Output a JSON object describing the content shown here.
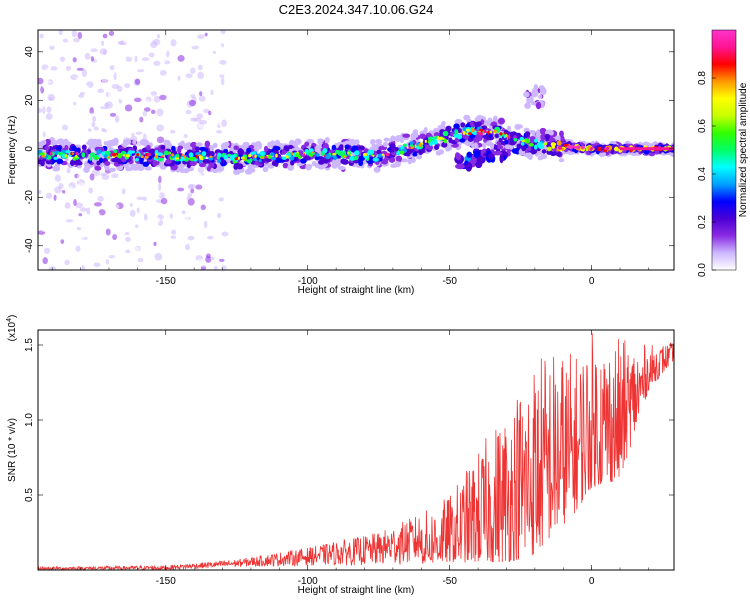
{
  "title": "C2E3.2024.347.10.06.G24",
  "chart_data": [
    {
      "type": "heatmap",
      "title": "C2E3.2024.347.10.06.G24",
      "xlabel": "Height of straight line (km)",
      "ylabel": "Frequency (Hz)",
      "xlim": [
        -195,
        29
      ],
      "ylim": [
        -50,
        49
      ],
      "x_ticks": [
        -150,
        -100,
        -50,
        0
      ],
      "y_ticks": [
        -40,
        -20,
        0,
        20,
        40
      ],
      "x_tick_labels": [
        "-150",
        "-100",
        "-50",
        "0"
      ],
      "y_tick_labels": [
        "-40",
        "-20",
        "0",
        "20",
        "40"
      ],
      "ridge": [
        {
          "x": -195,
          "y": -2.5
        },
        {
          "x": -150,
          "y": -3
        },
        {
          "x": -125,
          "y": -4
        },
        {
          "x": -100,
          "y": -2
        },
        {
          "x": -75,
          "y": -3
        },
        {
          "x": -60,
          "y": 2
        },
        {
          "x": -45,
          "y": 7
        },
        {
          "x": -35,
          "y": 7
        },
        {
          "x": -28,
          "y": 5
        },
        {
          "x": -20,
          "y": 2
        },
        {
          "x": -10,
          "y": 1
        },
        {
          "x": 0,
          "y": 0
        },
        {
          "x": 10,
          "y": 0
        },
        {
          "x": 29,
          "y": 0
        }
      ],
      "noise_x_range": [
        -195,
        -129
      ],
      "colorbar": {
        "label": "Normalized spectral amplitude",
        "range": [
          0,
          1
        ],
        "ticks": [
          0.0,
          0.2,
          0.4,
          0.6,
          0.8
        ],
        "tick_labels": [
          "0.0",
          "0.2",
          "0.4",
          "0.6",
          "0.8"
        ],
        "colors": [
          "#ffffff",
          "#cdb8ff",
          "#8a2be2",
          "#4b00d6",
          "#0000ff",
          "#00a0ff",
          "#00ffff",
          "#00ff66",
          "#33ff00",
          "#c8ff00",
          "#ffff00",
          "#ff9900",
          "#ff0000",
          "#ff1493",
          "#ff33cc"
        ]
      }
    },
    {
      "type": "line",
      "xlabel": "Height of straight line (km)",
      "ylabel": "SNR (10 * v/v)",
      "multiplier_label": "(x10",
      "multiplier_exp": "4",
      "xlim": [
        -195,
        29
      ],
      "ylim": [
        0,
        1.6
      ],
      "x_ticks": [
        -150,
        -100,
        -50,
        0
      ],
      "y_ticks": [
        0.5,
        1.0,
        1.5
      ],
      "x_tick_labels": [
        "-150",
        "-100",
        "-50",
        "0"
      ],
      "y_tick_labels": [
        "0.5",
        "1.0",
        "1.5"
      ],
      "series": [
        {
          "color": "#ee3333",
          "envelope": [
            {
              "x": -195,
              "lo": 0.0,
              "hi": 0.02
            },
            {
              "x": -150,
              "lo": 0.0,
              "hi": 0.03
            },
            {
              "x": -125,
              "lo": 0.02,
              "hi": 0.07
            },
            {
              "x": -100,
              "lo": 0.03,
              "hi": 0.15
            },
            {
              "x": -75,
              "lo": 0.03,
              "hi": 0.25
            },
            {
              "x": -60,
              "lo": 0.04,
              "hi": 0.38
            },
            {
              "x": -50,
              "lo": 0.05,
              "hi": 0.5
            },
            {
              "x": -40,
              "lo": 0.05,
              "hi": 0.8
            },
            {
              "x": -30,
              "lo": 0.05,
              "hi": 1.1
            },
            {
              "x": -20,
              "lo": 0.1,
              "hi": 1.45
            },
            {
              "x": -15,
              "lo": 0.2,
              "hi": 1.5
            },
            {
              "x": -5,
              "lo": 0.4,
              "hi": 1.45
            },
            {
              "x": 0,
              "lo": 0.55,
              "hi": 1.6
            },
            {
              "x": 10,
              "lo": 0.6,
              "hi": 1.55
            },
            {
              "x": 20,
              "lo": 1.2,
              "hi": 1.5
            },
            {
              "x": 29,
              "lo": 1.4,
              "hi": 1.52
            }
          ]
        }
      ]
    }
  ]
}
